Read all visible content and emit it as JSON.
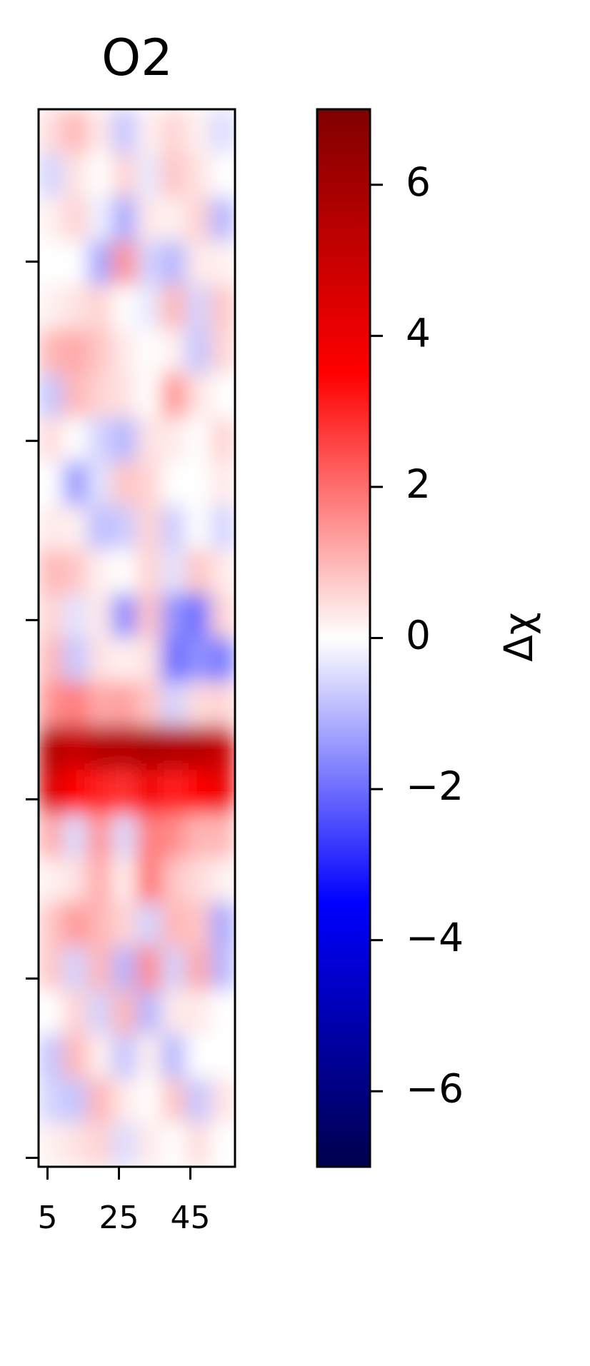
{
  "chart_data": {
    "type": "heatmap",
    "title": "O2",
    "xlim": [
      2.5,
      57.5
    ],
    "xticks": [
      5,
      25,
      45
    ],
    "ylim": [
      -0.5,
      58.5
    ],
    "yticks": [
      0,
      10,
      20,
      30,
      40,
      50
    ],
    "z": [
      [
        0.5,
        1,
        0.3,
        -0.8,
        0.2,
        0.6,
        0.2,
        -0.5
      ],
      [
        -0.6,
        0.4,
        0,
        0.6,
        -0.3,
        0.8,
        0.4,
        0
      ],
      [
        0.2,
        0.6,
        -0.2,
        -1.2,
        0.3,
        0.2,
        0.6,
        -1
      ],
      [
        0,
        0,
        -1.2,
        1.5,
        -0.6,
        -1,
        0.3,
        0.2
      ],
      [
        0.2,
        0.4,
        0.6,
        0,
        -0.3,
        1,
        -0.6,
        0.8
      ],
      [
        1,
        1.2,
        0.8,
        0.3,
        0,
        0.2,
        -0.8,
        0.6
      ],
      [
        -0.8,
        1,
        0.6,
        0.4,
        0,
        1.5,
        0.4,
        0
      ],
      [
        0.5,
        0,
        -0.6,
        -1,
        0.4,
        0.3,
        0,
        0.6
      ],
      [
        0,
        -1.4,
        -0.4,
        0.8,
        0.6,
        0,
        0,
        0.3
      ],
      [
        0.3,
        0.2,
        -0.9,
        -0.7,
        0.6,
        -0.7,
        0,
        -0.6
      ],
      [
        1,
        0.8,
        0.2,
        0,
        0.6,
        -0.4,
        0.8,
        0.3
      ],
      [
        0.6,
        -0.4,
        0.3,
        -1.6,
        0.8,
        -1.5,
        -2,
        0.6
      ],
      [
        1,
        -0.8,
        0.4,
        0.2,
        0.4,
        -2,
        -1.5,
        -1.8
      ],
      [
        1.5,
        1.8,
        1.2,
        1.3,
        0.8,
        -0.6,
        0.5,
        0.6
      ],
      [
        5.5,
        5,
        5.5,
        5.5,
        5.8,
        5.5,
        5.5,
        5
      ],
      [
        4.5,
        3.5,
        3,
        2.8,
        3.8,
        3,
        3.5,
        4
      ],
      [
        1.2,
        -0.5,
        1.5,
        -0.5,
        1.8,
        1.6,
        1,
        1
      ],
      [
        0.2,
        0.4,
        1.2,
        0.2,
        2,
        0.8,
        0.5,
        0.2
      ],
      [
        0.8,
        1.4,
        1,
        0.6,
        -0.6,
        1,
        0.8,
        -1.2
      ],
      [
        0.8,
        -0.6,
        1,
        -1,
        1.6,
        -0.6,
        1.2,
        -1
      ],
      [
        0,
        0.6,
        -0.6,
        1,
        -1,
        0.3,
        0.3,
        0
      ],
      [
        -0.8,
        1,
        0.2,
        -0.8,
        0.2,
        -1,
        0,
        0
      ],
      [
        -0.6,
        -0.8,
        1,
        0.3,
        0,
        0.8,
        -0.8,
        0.4
      ],
      [
        0.2,
        0.4,
        0.6,
        -0.5,
        0.3,
        0,
        0.5,
        0
      ]
    ],
    "colormap": "seismic",
    "zlim": [
      -7,
      7
    ],
    "colorbar_label": "Δχ",
    "colorbar_ticks": [
      {
        "value": -6,
        "label": "−6"
      },
      {
        "value": -4,
        "label": "−4"
      },
      {
        "value": -2,
        "label": "−2"
      },
      0,
      2,
      4,
      6
    ]
  }
}
